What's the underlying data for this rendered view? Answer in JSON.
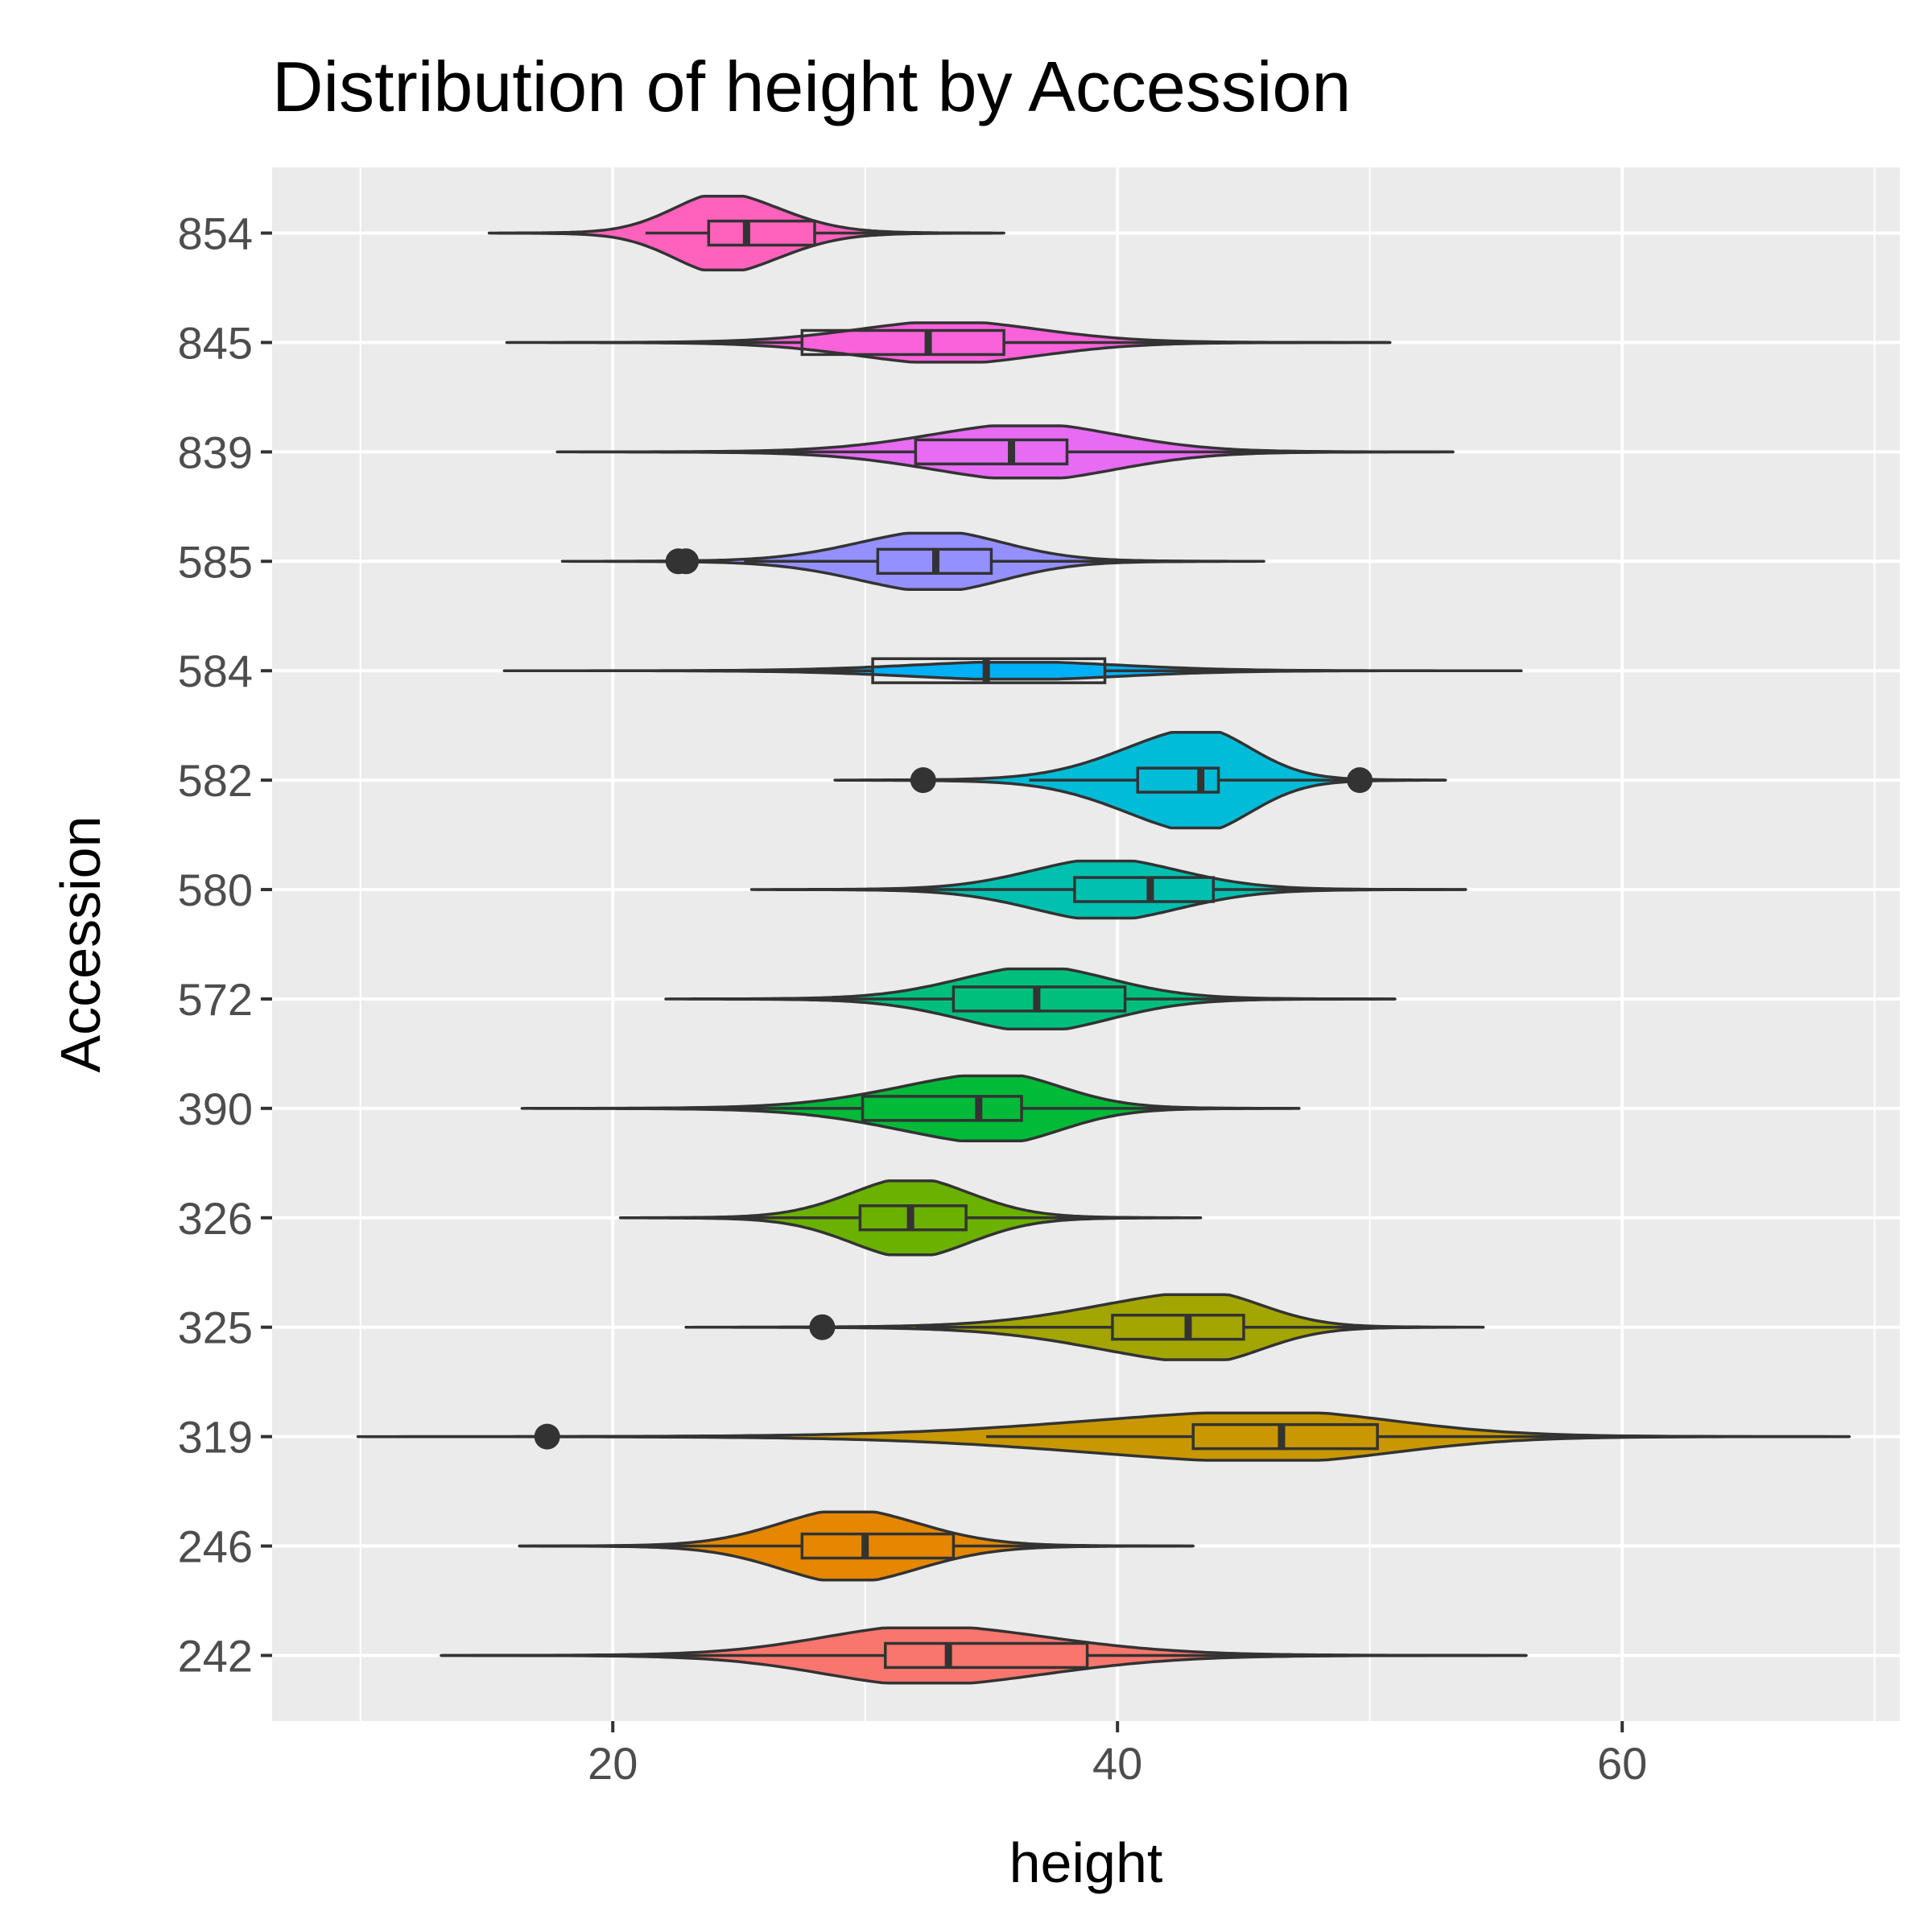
{
  "chart_data": {
    "type": "violin",
    "title": "Distribution of height by Accession",
    "xlabel": "height",
    "ylabel": "Accession",
    "xlim": [
      6.5,
      71
    ],
    "x_ticks": [
      20,
      40,
      60
    ],
    "x_minor_ticks": [
      10,
      30,
      50,
      70
    ],
    "grid": true,
    "legend": "none",
    "categories": [
      "242",
      "246",
      "319",
      "325",
      "326",
      "390",
      "572",
      "580",
      "582",
      "584",
      "585",
      "839",
      "845",
      "854"
    ],
    "series": [
      {
        "category": "242",
        "color": "#F8766D",
        "min": 13.2,
        "max": 56.2,
        "mode": 32.3,
        "peak": 0.56,
        "q1": 30.8,
        "median": 33.3,
        "q3": 38.8,
        "whisker_low": 13.2,
        "whisker_high": 56.2,
        "outliers": []
      },
      {
        "category": "246",
        "color": "#E58700",
        "min": 16.3,
        "max": 43.0,
        "mode": 29.3,
        "peak": 0.69,
        "q1": 27.5,
        "median": 30.0,
        "q3": 33.5,
        "whisker_low": 16.3,
        "whisker_high": 43.0,
        "outliers": []
      },
      {
        "category": "319",
        "color": "#C99800",
        "min": 9.9,
        "max": 69.0,
        "mode": 46.3,
        "peak": 0.48,
        "q1": 43.0,
        "median": 46.5,
        "q3": 50.3,
        "whisker_low": 34.8,
        "whisker_high": 69.0,
        "outliers": [
          17.4
        ]
      },
      {
        "category": "325",
        "color": "#A3A500",
        "min": 22.9,
        "max": 54.5,
        "mode": 43.5,
        "peak": 0.66,
        "q1": 39.8,
        "median": 42.8,
        "q3": 45.0,
        "whisker_low": 32.0,
        "whisker_high": 54.5,
        "outliers": [
          28.3
        ]
      },
      {
        "category": "326",
        "color": "#6BB100",
        "min": 20.3,
        "max": 43.3,
        "mode": 31.8,
        "peak": 0.75,
        "q1": 29.8,
        "median": 31.8,
        "q3": 34.0,
        "whisker_low": 24.8,
        "whisker_high": 39.5,
        "outliers": []
      },
      {
        "category": "390",
        "color": "#00BA38",
        "min": 16.4,
        "max": 47.2,
        "mode": 35.3,
        "peak": 0.66,
        "q1": 29.9,
        "median": 34.5,
        "q3": 36.2,
        "whisker_low": 23.8,
        "whisker_high": 47.2,
        "outliers": []
      },
      {
        "category": "572",
        "color": "#00BF7D",
        "min": 22.1,
        "max": 51.0,
        "mode": 36.8,
        "peak": 0.61,
        "q1": 33.5,
        "median": 36.8,
        "q3": 40.3,
        "whisker_low": 27.8,
        "whisker_high": 51.0,
        "outliers": []
      },
      {
        "category": "580",
        "color": "#00C0AF",
        "min": 25.5,
        "max": 53.8,
        "mode": 39.5,
        "peak": 0.58,
        "q1": 38.3,
        "median": 41.3,
        "q3": 43.8,
        "whisker_low": 30.0,
        "whisker_high": 53.8,
        "outliers": []
      },
      {
        "category": "582",
        "color": "#00BCD8",
        "min": 28.8,
        "max": 53.0,
        "mode": 43.3,
        "peak": 0.97,
        "q1": 40.8,
        "median": 43.3,
        "q3": 44.0,
        "whisker_low": 36.5,
        "whisker_high": 53.0,
        "outliers": [
          32.3,
          49.6
        ]
      },
      {
        "category": "584",
        "color": "#00B0F6",
        "min": 15.7,
        "max": 56.0,
        "mode": 36.0,
        "peak": 0.17,
        "q1": 30.3,
        "median": 34.8,
        "q3": 39.5,
        "whisker_low": 21.6,
        "whisker_high": 56.0,
        "outliers": []
      },
      {
        "category": "585",
        "color": "#9590FF",
        "min": 18.0,
        "max": 45.8,
        "mode": 32.8,
        "peak": 0.57,
        "q1": 30.5,
        "median": 32.8,
        "q3": 35.0,
        "whisker_low": 25.2,
        "whisker_high": 41.5,
        "outliers": [
          22.6,
          22.9
        ]
      },
      {
        "category": "839",
        "color": "#E76BF3",
        "min": 17.8,
        "max": 53.3,
        "mode": 36.5,
        "peak": 0.53,
        "q1": 32.0,
        "median": 35.8,
        "q3": 38.0,
        "whisker_low": 22.5,
        "whisker_high": 53.3,
        "outliers": []
      },
      {
        "category": "845",
        "color": "#FA62DB",
        "min": 15.8,
        "max": 50.8,
        "mode": 33.3,
        "peak": 0.4,
        "q1": 27.5,
        "median": 32.5,
        "q3": 35.5,
        "whisker_low": 23.0,
        "whisker_high": 50.8,
        "outliers": []
      },
      {
        "category": "854",
        "color": "#FF62BC",
        "min": 15.1,
        "max": 35.5,
        "mode": 24.3,
        "peak": 0.75,
        "q1": 23.8,
        "median": 25.3,
        "q3": 28.0,
        "whisker_low": 21.3,
        "whisker_high": 31.2,
        "outliers": []
      }
    ]
  }
}
